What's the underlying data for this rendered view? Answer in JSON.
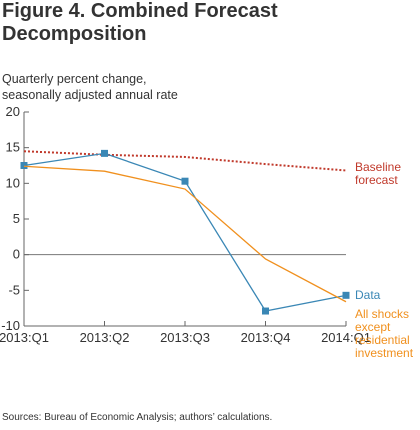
{
  "figure": {
    "title": "Figure 4. Combined Forecast Decomposition",
    "subtitle_line1": "Quarterly percent change,",
    "subtitle_line2": "seasonally adjusted annual rate",
    "source": "Sources: Bureau of Economic Analysis; authors’ calculations."
  },
  "chart_data": {
    "type": "line",
    "title": "Figure 4. Combined Forecast Decomposition",
    "ylabel": "Quarterly percent change, seasonally adjusted annual rate",
    "xlabel": "",
    "categories": [
      "2013:Q1",
      "2013:Q2",
      "2013:Q3",
      "2013:Q4",
      "2014:Q1"
    ],
    "ylim": [
      -10,
      20
    ],
    "yticks": [
      -10,
      -5,
      0,
      5,
      10,
      15,
      20
    ],
    "grid": false,
    "series": [
      {
        "name": "Baseline forecast",
        "label_lines": [
          "Baseline",
          "forecast"
        ],
        "values": [
          14.5,
          14.0,
          13.7,
          12.7,
          11.8
        ],
        "color": "#c0392b",
        "style": "dotted",
        "markers": false
      },
      {
        "name": "Data",
        "label_lines": [
          "Data"
        ],
        "values": [
          12.5,
          14.2,
          10.3,
          -7.9,
          -5.7
        ],
        "color": "#3a87b5",
        "style": "solid",
        "markers": true
      },
      {
        "name": "All shocks except residential investment",
        "label_lines": [
          "All shocks",
          "except",
          "residential",
          "investment"
        ],
        "values": [
          12.4,
          11.7,
          9.2,
          -0.6,
          -6.6
        ],
        "color": "#f0901e",
        "style": "solid",
        "markers": false
      }
    ]
  }
}
